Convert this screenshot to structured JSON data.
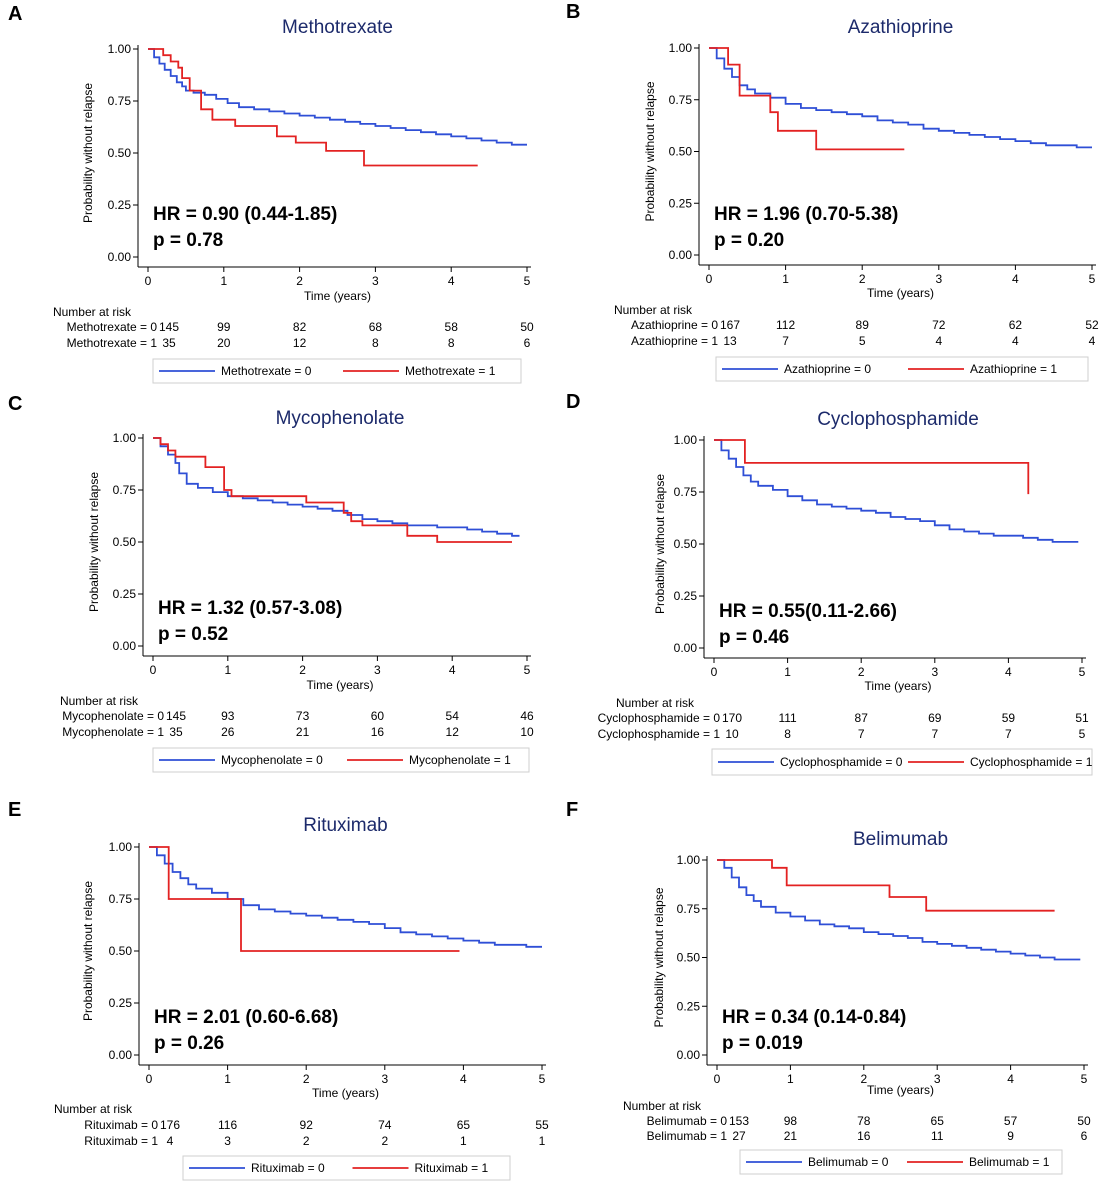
{
  "figure": {
    "colors": {
      "group0": "#2f4fd6",
      "group1": "#e32222",
      "title": "#1c2a6b",
      "axis": "#000000"
    },
    "common": {
      "ylabel": "Probability without relapse",
      "xlabel": "Time (years)",
      "risk_header": "Number at risk",
      "xticks": [
        "0",
        "1",
        "2",
        "3",
        "4",
        "5"
      ],
      "yticks": [
        "0.00",
        "0.25",
        "0.50",
        "0.75",
        "1.00"
      ]
    }
  },
  "chart_data": [
    {
      "panel": "A",
      "type": "line",
      "title": "Methotrexate",
      "xlabel": "Time (years)",
      "ylabel": "Probability without relapse",
      "xlim": [
        0,
        5
      ],
      "ylim": [
        0,
        1
      ],
      "hr_text": "HR = 0.90 (0.44-1.85)",
      "p_text": "p = 0.78",
      "series": [
        {
          "name": "Methotrexate = 0",
          "risk_label": "Methotrexate = 0",
          "at_risk": [
            "145",
            "99",
            "82",
            "68",
            "58",
            "50"
          ],
          "x": [
            0,
            0.08,
            0.15,
            0.22,
            0.3,
            0.38,
            0.45,
            0.5,
            0.6,
            0.75,
            0.9,
            1.05,
            1.2,
            1.4,
            1.6,
            1.8,
            2.0,
            2.2,
            2.4,
            2.6,
            2.8,
            3.0,
            3.2,
            3.4,
            3.6,
            3.8,
            4.0,
            4.2,
            4.4,
            4.6,
            4.8,
            5.0
          ],
          "y": [
            1.0,
            0.96,
            0.93,
            0.9,
            0.87,
            0.84,
            0.82,
            0.8,
            0.79,
            0.78,
            0.76,
            0.74,
            0.72,
            0.71,
            0.7,
            0.69,
            0.68,
            0.67,
            0.66,
            0.65,
            0.64,
            0.63,
            0.62,
            0.61,
            0.6,
            0.59,
            0.58,
            0.57,
            0.56,
            0.55,
            0.54,
            0.54
          ]
        },
        {
          "name": "Methotrexate = 1",
          "risk_label": "Methotrexate = 1",
          "at_risk": [
            "35",
            "20",
            "12",
            "8",
            "8",
            "6"
          ],
          "x": [
            0,
            0.2,
            0.3,
            0.4,
            0.45,
            0.55,
            0.7,
            0.85,
            1.15,
            1.7,
            1.95,
            2.35,
            2.85,
            4.35
          ],
          "y": [
            1.0,
            0.97,
            0.94,
            0.91,
            0.86,
            0.8,
            0.71,
            0.66,
            0.63,
            0.58,
            0.55,
            0.51,
            0.44,
            0.44
          ]
        }
      ]
    },
    {
      "panel": "B",
      "type": "line",
      "title": "Azathioprine",
      "xlabel": "Time (years)",
      "ylabel": "Probability without relapse",
      "xlim": [
        0,
        5
      ],
      "ylim": [
        0,
        1
      ],
      "hr_text": "HR = 1.96 (0.70-5.38)",
      "p_text": "p = 0.20",
      "series": [
        {
          "name": "Azathioprine = 0",
          "risk_label": "Azathioprine = 0",
          "at_risk": [
            "167",
            "112",
            "89",
            "72",
            "62",
            "52"
          ],
          "x": [
            0,
            0.1,
            0.2,
            0.3,
            0.4,
            0.5,
            0.6,
            0.8,
            1.0,
            1.2,
            1.4,
            1.6,
            1.8,
            2.0,
            2.2,
            2.4,
            2.6,
            2.8,
            3.0,
            3.2,
            3.4,
            3.6,
            3.8,
            4.0,
            4.2,
            4.4,
            4.6,
            4.8,
            5.0
          ],
          "y": [
            1.0,
            0.95,
            0.9,
            0.86,
            0.82,
            0.8,
            0.78,
            0.76,
            0.73,
            0.71,
            0.7,
            0.69,
            0.68,
            0.67,
            0.65,
            0.64,
            0.63,
            0.61,
            0.6,
            0.59,
            0.58,
            0.57,
            0.56,
            0.55,
            0.54,
            0.53,
            0.53,
            0.52,
            0.52
          ]
        },
        {
          "name": "Azathioprine = 1",
          "risk_label": "Azathioprine = 1",
          "at_risk": [
            "13",
            "7",
            "5",
            "4",
            "4",
            "4"
          ],
          "x": [
            0,
            0.25,
            0.4,
            0.8,
            0.9,
            1.4,
            2.55
          ],
          "y": [
            1.0,
            0.92,
            0.77,
            0.69,
            0.6,
            0.51,
            0.51
          ]
        }
      ]
    },
    {
      "panel": "C",
      "type": "line",
      "title": "Mycophenolate",
      "xlabel": "Time (years)",
      "ylabel": "Probability without relapse",
      "xlim": [
        0,
        5
      ],
      "ylim": [
        0,
        1
      ],
      "hr_text": "HR = 1.32 (0.57-3.08)",
      "p_text": "p = 0.52",
      "series": [
        {
          "name": "Mycophenolate = 0",
          "risk_label": "Mycophenolate = 0",
          "at_risk": [
            "145",
            "93",
            "73",
            "60",
            "54",
            "46"
          ],
          "x": [
            0,
            0.1,
            0.2,
            0.3,
            0.35,
            0.45,
            0.6,
            0.8,
            1.0,
            1.2,
            1.4,
            1.6,
            1.8,
            2.0,
            2.2,
            2.4,
            2.6,
            2.8,
            3.0,
            3.2,
            3.4,
            3.6,
            3.8,
            4.0,
            4.2,
            4.4,
            4.6,
            4.8,
            4.9
          ],
          "y": [
            1.0,
            0.96,
            0.92,
            0.88,
            0.83,
            0.78,
            0.76,
            0.74,
            0.72,
            0.71,
            0.7,
            0.69,
            0.68,
            0.67,
            0.66,
            0.65,
            0.63,
            0.61,
            0.6,
            0.59,
            0.58,
            0.58,
            0.57,
            0.57,
            0.56,
            0.55,
            0.54,
            0.53,
            0.53
          ]
        },
        {
          "name": "Mycophenolate = 1",
          "risk_label": "Mycophenolate = 1",
          "at_risk": [
            "35",
            "26",
            "21",
            "16",
            "12",
            "10"
          ],
          "x": [
            0,
            0.1,
            0.2,
            0.3,
            0.4,
            0.7,
            0.95,
            1.05,
            2.05,
            2.55,
            2.65,
            2.8,
            3.0,
            3.4,
            3.8,
            4.8
          ],
          "y": [
            1.0,
            0.97,
            0.94,
            0.91,
            0.91,
            0.86,
            0.75,
            0.72,
            0.69,
            0.64,
            0.6,
            0.58,
            0.58,
            0.53,
            0.5,
            0.5
          ]
        }
      ]
    },
    {
      "panel": "D",
      "type": "line",
      "title": "Cyclophosphamide",
      "xlabel": "Time (years)",
      "ylabel": "Probability without relapse",
      "xlim": [
        0,
        5
      ],
      "ylim": [
        0,
        1
      ],
      "hr_text": "HR = 0.55(0.11-2.66)",
      "p_text": "p = 0.46",
      "series": [
        {
          "name": "Cyclophosphamide = 0",
          "risk_label": "Cyclophosphamide = 0",
          "at_risk": [
            "170",
            "111",
            "87",
            "69",
            "59",
            "51"
          ],
          "x": [
            0,
            0.1,
            0.2,
            0.3,
            0.4,
            0.5,
            0.6,
            0.8,
            1.0,
            1.2,
            1.4,
            1.6,
            1.8,
            2.0,
            2.2,
            2.4,
            2.6,
            2.8,
            3.0,
            3.2,
            3.4,
            3.6,
            3.8,
            4.0,
            4.2,
            4.4,
            4.6,
            4.8,
            4.95
          ],
          "y": [
            1.0,
            0.95,
            0.91,
            0.87,
            0.83,
            0.8,
            0.78,
            0.76,
            0.73,
            0.71,
            0.69,
            0.68,
            0.67,
            0.66,
            0.65,
            0.63,
            0.62,
            0.61,
            0.59,
            0.57,
            0.56,
            0.55,
            0.54,
            0.54,
            0.53,
            0.52,
            0.51,
            0.51,
            0.51
          ]
        },
        {
          "name": "Cyclophosphamide = 1",
          "risk_label": "Cyclophosphamide = 1",
          "at_risk": [
            "10",
            "8",
            "7",
            "7",
            "7",
            "5"
          ],
          "x": [
            0,
            0.42,
            4.27,
            4.27
          ],
          "y": [
            1.0,
            0.89,
            0.89,
            0.74
          ]
        }
      ]
    },
    {
      "panel": "E",
      "type": "line",
      "title": "Rituximab",
      "xlabel": "Time (years)",
      "ylabel": "Probability without relapse",
      "xlim": [
        0,
        5
      ],
      "ylim": [
        0,
        1
      ],
      "hr_text": "HR = 2.01 (0.60-6.68)",
      "p_text": "p = 0.26",
      "series": [
        {
          "name": "Rituximab = 0",
          "risk_label": "Rituximab = 0",
          "at_risk": [
            "176",
            "116",
            "92",
            "74",
            "65",
            "55"
          ],
          "x": [
            0,
            0.1,
            0.2,
            0.3,
            0.4,
            0.5,
            0.6,
            0.8,
            1.0,
            1.2,
            1.4,
            1.6,
            1.8,
            2.0,
            2.2,
            2.4,
            2.6,
            2.8,
            3.0,
            3.2,
            3.4,
            3.6,
            3.8,
            4.0,
            4.2,
            4.4,
            4.6,
            4.8,
            5.0
          ],
          "y": [
            1.0,
            0.96,
            0.92,
            0.88,
            0.85,
            0.82,
            0.8,
            0.78,
            0.75,
            0.72,
            0.7,
            0.69,
            0.68,
            0.67,
            0.66,
            0.65,
            0.64,
            0.63,
            0.61,
            0.59,
            0.58,
            0.57,
            0.56,
            0.55,
            0.54,
            0.53,
            0.53,
            0.52,
            0.52
          ]
        },
        {
          "name": "Rituximab = 1",
          "risk_label": "Rituximab = 1",
          "at_risk": [
            "4",
            "3",
            "2",
            "2",
            "1",
            "1"
          ],
          "x": [
            0,
            0.25,
            1.17,
            3.95
          ],
          "y": [
            1.0,
            0.75,
            0.5,
            0.5
          ]
        }
      ]
    },
    {
      "panel": "F",
      "type": "line",
      "title": "Belimumab",
      "xlabel": "Time (years)",
      "ylabel": "Probability without relapse",
      "xlim": [
        0,
        5
      ],
      "ylim": [
        0,
        1
      ],
      "hr_text": "HR = 0.34 (0.14-0.84)",
      "p_text": "p = 0.019",
      "series": [
        {
          "name": "Belimumab = 0",
          "risk_label": "Belimumab = 0",
          "at_risk": [
            "153",
            "98",
            "78",
            "65",
            "57",
            "50"
          ],
          "x": [
            0,
            0.1,
            0.2,
            0.3,
            0.4,
            0.5,
            0.6,
            0.8,
            1.0,
            1.2,
            1.4,
            1.6,
            1.8,
            2.0,
            2.2,
            2.4,
            2.6,
            2.8,
            3.0,
            3.2,
            3.4,
            3.6,
            3.8,
            4.0,
            4.2,
            4.4,
            4.6,
            4.8,
            4.95
          ],
          "y": [
            1.0,
            0.96,
            0.91,
            0.86,
            0.82,
            0.79,
            0.76,
            0.73,
            0.71,
            0.69,
            0.67,
            0.66,
            0.65,
            0.63,
            0.62,
            0.61,
            0.6,
            0.58,
            0.57,
            0.56,
            0.55,
            0.54,
            0.53,
            0.52,
            0.51,
            0.5,
            0.49,
            0.49,
            0.49
          ]
        },
        {
          "name": "Belimumab = 1",
          "risk_label": "Belimumab = 1",
          "at_risk": [
            "27",
            "21",
            "16",
            "11",
            "9",
            "6"
          ],
          "x": [
            0,
            0.75,
            0.95,
            2.35,
            2.85,
            4.6
          ],
          "y": [
            1.0,
            0.96,
            0.87,
            0.81,
            0.74,
            0.74
          ]
        }
      ]
    }
  ]
}
